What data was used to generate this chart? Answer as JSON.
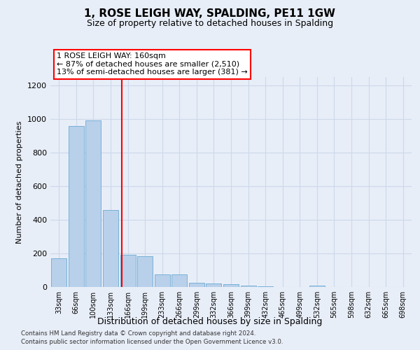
{
  "title": "1, ROSE LEIGH WAY, SPALDING, PE11 1GW",
  "subtitle": "Size of property relative to detached houses in Spalding",
  "xlabel": "Distribution of detached houses by size in Spalding",
  "ylabel": "Number of detached properties",
  "bar_labels": [
    "33sqm",
    "66sqm",
    "100sqm",
    "133sqm",
    "166sqm",
    "199sqm",
    "233sqm",
    "266sqm",
    "299sqm",
    "332sqm",
    "366sqm",
    "399sqm",
    "432sqm",
    "465sqm",
    "499sqm",
    "532sqm",
    "565sqm",
    "598sqm",
    "632sqm",
    "665sqm",
    "698sqm"
  ],
  "bar_values": [
    170,
    960,
    990,
    460,
    190,
    185,
    75,
    75,
    25,
    20,
    15,
    10,
    5,
    0,
    0,
    8,
    0,
    0,
    0,
    0,
    0
  ],
  "bar_color": "#b8d0ea",
  "bar_edge_color": "#6aaad4",
  "grid_color": "#ccd8ea",
  "background_color": "#e8eef8",
  "annotation_line1": "1 ROSE LEIGH WAY: 160sqm",
  "annotation_line2": "← 87% of detached houses are smaller (2,510)",
  "annotation_line3": "13% of semi-detached houses are larger (381) →",
  "annotation_box_color": "white",
  "annotation_box_edge_color": "red",
  "vline_color": "red",
  "vline_x": 3.67,
  "ylim": [
    0,
    1250
  ],
  "yticks": [
    0,
    200,
    400,
    600,
    800,
    1000,
    1200
  ],
  "title_fontsize": 11,
  "subtitle_fontsize": 9,
  "footer_line1": "Contains HM Land Registry data © Crown copyright and database right 2024.",
  "footer_line2": "Contains public sector information licensed under the Open Government Licence v3.0."
}
